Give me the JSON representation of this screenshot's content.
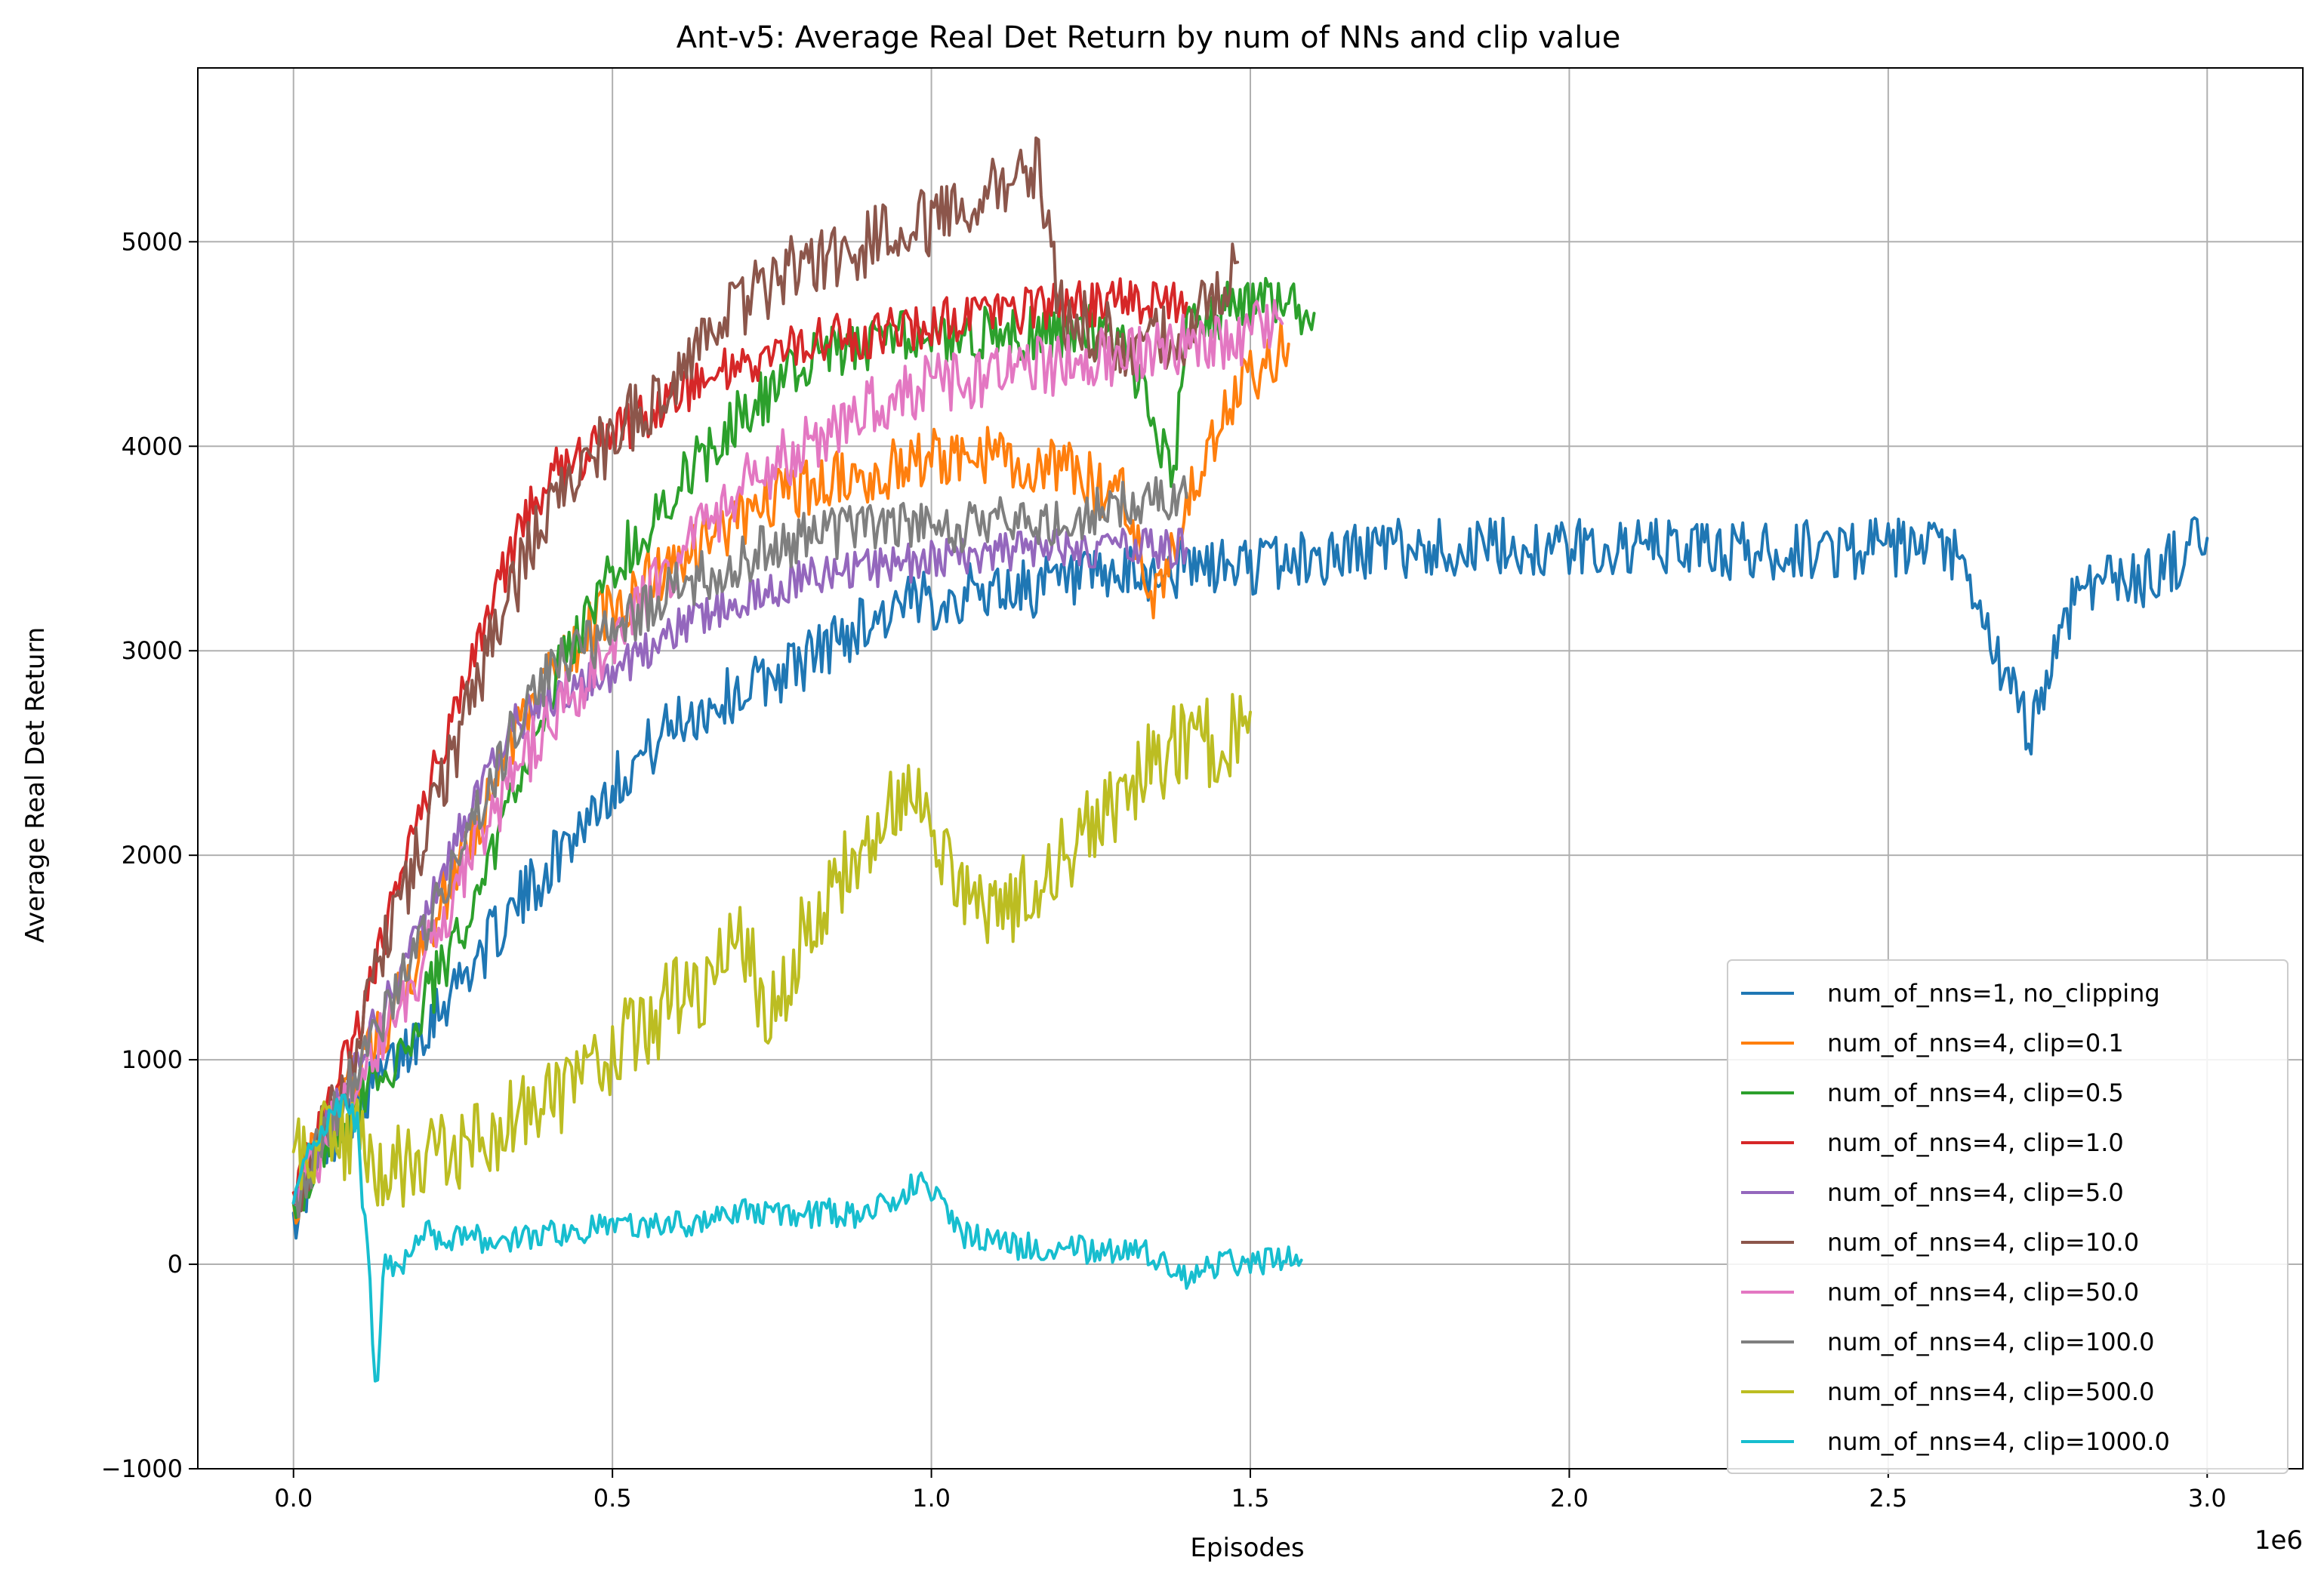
{
  "chart_data": {
    "type": "line",
    "title": "Ant-v5: Average Real Det Return by num of NNs and clip value",
    "xlabel": "Episodes",
    "ylabel": "Average Real Det Return",
    "x_offset_label": "1e6",
    "xlim": [
      -0.15,
      3.15
    ],
    "ylim": [
      -1000,
      5850
    ],
    "xticks": [
      0.0,
      0.5,
      1.0,
      1.5,
      2.0,
      2.5,
      3.0
    ],
    "xtick_labels": [
      "0.0",
      "0.5",
      "1.0",
      "1.5",
      "2.0",
      "2.5",
      "3.0"
    ],
    "yticks": [
      -1000,
      0,
      1000,
      2000,
      3000,
      4000,
      5000
    ],
    "ytick_labels": [
      "−1000",
      "0",
      "1000",
      "2000",
      "3000",
      "4000",
      "5000"
    ],
    "grid": true,
    "legend_position": "lower-right",
    "series": [
      {
        "name": "num_of_nns=1, no_clipping",
        "color": "#1f77b4",
        "points": [
          [
            0,
            250
          ],
          [
            0.05,
            600
          ],
          [
            0.1,
            800
          ],
          [
            0.15,
            950
          ],
          [
            0.2,
            1150
          ],
          [
            0.25,
            1350
          ],
          [
            0.3,
            1550
          ],
          [
            0.35,
            1750
          ],
          [
            0.4,
            1950
          ],
          [
            0.45,
            2150
          ],
          [
            0.5,
            2350
          ],
          [
            0.55,
            2500
          ],
          [
            0.6,
            2650
          ],
          [
            0.7,
            2800
          ],
          [
            0.8,
            2950
          ],
          [
            0.9,
            3150
          ],
          [
            1.0,
            3250
          ],
          [
            1.1,
            3300
          ],
          [
            1.2,
            3320
          ],
          [
            1.3,
            3350
          ],
          [
            1.4,
            3400
          ],
          [
            1.5,
            3420
          ],
          [
            1.6,
            3450
          ],
          [
            1.7,
            3500
          ],
          [
            1.8,
            3500
          ],
          [
            1.9,
            3500
          ],
          [
            2.0,
            3500
          ],
          [
            2.1,
            3500
          ],
          [
            2.2,
            3500
          ],
          [
            2.3,
            3480
          ],
          [
            2.4,
            3500
          ],
          [
            2.5,
            3500
          ],
          [
            2.6,
            3480
          ],
          [
            2.72,
            2600
          ],
          [
            2.8,
            3350
          ],
          [
            2.9,
            3350
          ],
          [
            3.0,
            3550
          ]
        ],
        "noise": 150
      },
      {
        "name": "num_of_nns=4, clip=0.1",
        "color": "#ff7f0e",
        "points": [
          [
            0,
            300
          ],
          [
            0.05,
            650
          ],
          [
            0.1,
            950
          ],
          [
            0.15,
            1200
          ],
          [
            0.2,
            1550
          ],
          [
            0.25,
            1900
          ],
          [
            0.3,
            2250
          ],
          [
            0.35,
            2600
          ],
          [
            0.4,
            2900
          ],
          [
            0.5,
            3200
          ],
          [
            0.6,
            3450
          ],
          [
            0.7,
            3650
          ],
          [
            0.8,
            3800
          ],
          [
            0.9,
            3850
          ],
          [
            1.0,
            3950
          ],
          [
            1.1,
            3950
          ],
          [
            1.2,
            3900
          ],
          [
            1.3,
            3750
          ],
          [
            1.35,
            3250
          ],
          [
            1.4,
            3700
          ],
          [
            1.45,
            4100
          ],
          [
            1.5,
            4350
          ],
          [
            1.56,
            4500
          ]
        ],
        "noise": 150
      },
      {
        "name": "num_of_nns=4, clip=0.5",
        "color": "#2ca02c",
        "points": [
          [
            0,
            300
          ],
          [
            0.05,
            600
          ],
          [
            0.1,
            800
          ],
          [
            0.15,
            950
          ],
          [
            0.2,
            1250
          ],
          [
            0.25,
            1550
          ],
          [
            0.3,
            1900
          ],
          [
            0.35,
            2350
          ],
          [
            0.4,
            2800
          ],
          [
            0.5,
            3400
          ],
          [
            0.6,
            3800
          ],
          [
            0.7,
            4150
          ],
          [
            0.8,
            4400
          ],
          [
            0.9,
            4500
          ],
          [
            1.0,
            4550
          ],
          [
            1.1,
            4550
          ],
          [
            1.2,
            4550
          ],
          [
            1.3,
            4550
          ],
          [
            1.38,
            3850
          ],
          [
            1.4,
            4600
          ],
          [
            1.5,
            4700
          ],
          [
            1.6,
            4650
          ]
        ],
        "noise": 140
      },
      {
        "name": "num_of_nns=4, clip=1.0",
        "color": "#d62728",
        "points": [
          [
            0,
            350
          ],
          [
            0.05,
            700
          ],
          [
            0.1,
            1150
          ],
          [
            0.15,
            1700
          ],
          [
            0.2,
            2200
          ],
          [
            0.25,
            2700
          ],
          [
            0.3,
            3150
          ],
          [
            0.35,
            3550
          ],
          [
            0.4,
            3850
          ],
          [
            0.5,
            4050
          ],
          [
            0.6,
            4250
          ],
          [
            0.7,
            4400
          ],
          [
            0.8,
            4500
          ],
          [
            0.9,
            4550
          ],
          [
            1.0,
            4600
          ],
          [
            1.1,
            4650
          ],
          [
            1.2,
            4700
          ],
          [
            1.3,
            4700
          ],
          [
            1.4,
            4700
          ]
        ],
        "noise": 120
      },
      {
        "name": "num_of_nns=4, clip=5.0",
        "color": "#9467bd",
        "points": [
          [
            0,
            300
          ],
          [
            0.05,
            650
          ],
          [
            0.1,
            1000
          ],
          [
            0.15,
            1300
          ],
          [
            0.2,
            1650
          ],
          [
            0.25,
            2050
          ],
          [
            0.3,
            2400
          ],
          [
            0.35,
            2650
          ],
          [
            0.4,
            2750
          ],
          [
            0.5,
            2900
          ],
          [
            0.6,
            3100
          ],
          [
            0.7,
            3250
          ],
          [
            0.8,
            3350
          ],
          [
            0.9,
            3400
          ],
          [
            1.0,
            3450
          ],
          [
            1.1,
            3480
          ],
          [
            1.2,
            3500
          ],
          [
            1.3,
            3500
          ],
          [
            1.4,
            3500
          ]
        ],
        "noise": 100
      },
      {
        "name": "num_of_nns=4, clip=10.0",
        "color": "#8c564b",
        "points": [
          [
            0,
            300
          ],
          [
            0.05,
            700
          ],
          [
            0.1,
            1100
          ],
          [
            0.15,
            1600
          ],
          [
            0.2,
            2050
          ],
          [
            0.25,
            2500
          ],
          [
            0.3,
            2950
          ],
          [
            0.35,
            3350
          ],
          [
            0.4,
            3700
          ],
          [
            0.5,
            4050
          ],
          [
            0.6,
            4350
          ],
          [
            0.7,
            4700
          ],
          [
            0.8,
            4900
          ],
          [
            0.9,
            5000
          ],
          [
            1.0,
            5100
          ],
          [
            1.1,
            5250
          ],
          [
            1.17,
            5350
          ],
          [
            1.2,
            4650
          ],
          [
            1.3,
            4500
          ],
          [
            1.4,
            4550
          ],
          [
            1.48,
            4900
          ]
        ],
        "noise": 170
      },
      {
        "name": "num_of_nns=4, clip=50.0",
        "color": "#e377c2",
        "points": [
          [
            0,
            300
          ],
          [
            0.05,
            600
          ],
          [
            0.1,
            900
          ],
          [
            0.15,
            1150
          ],
          [
            0.2,
            1450
          ],
          [
            0.25,
            1800
          ],
          [
            0.3,
            2150
          ],
          [
            0.35,
            2400
          ],
          [
            0.4,
            2650
          ],
          [
            0.5,
            3000
          ],
          [
            0.6,
            3450
          ],
          [
            0.7,
            3800
          ],
          [
            0.8,
            4000
          ],
          [
            0.9,
            4200
          ],
          [
            1.0,
            4300
          ],
          [
            1.1,
            4350
          ],
          [
            1.2,
            4400
          ],
          [
            1.3,
            4450
          ],
          [
            1.4,
            4500
          ],
          [
            1.5,
            4550
          ],
          [
            1.55,
            4600
          ]
        ],
        "noise": 150
      },
      {
        "name": "num_of_nns=4, clip=100.0",
        "color": "#7f7f7f",
        "points": [
          [
            0,
            300
          ],
          [
            0.05,
            650
          ],
          [
            0.1,
            950
          ],
          [
            0.15,
            1250
          ],
          [
            0.2,
            1600
          ],
          [
            0.25,
            1950
          ],
          [
            0.3,
            2300
          ],
          [
            0.35,
            2650
          ],
          [
            0.4,
            2900
          ],
          [
            0.5,
            3100
          ],
          [
            0.6,
            3300
          ],
          [
            0.7,
            3450
          ],
          [
            0.8,
            3550
          ],
          [
            0.9,
            3600
          ],
          [
            1.0,
            3600
          ],
          [
            1.1,
            3620
          ],
          [
            1.2,
            3650
          ],
          [
            1.3,
            3700
          ],
          [
            1.4,
            3750
          ]
        ],
        "noise": 130
      },
      {
        "name": "num_of_nns=4, clip=500.0",
        "color": "#bcbd22",
        "points": [
          [
            0,
            550
          ],
          [
            0.05,
            600
          ],
          [
            0.1,
            600
          ],
          [
            0.15,
            450
          ],
          [
            0.2,
            550
          ],
          [
            0.3,
            600
          ],
          [
            0.35,
            700
          ],
          [
            0.4,
            800
          ],
          [
            0.45,
            950
          ],
          [
            0.5,
            1050
          ],
          [
            0.55,
            1150
          ],
          [
            0.6,
            1300
          ],
          [
            0.65,
            1400
          ],
          [
            0.7,
            1550
          ],
          [
            0.75,
            1250
          ],
          [
            0.8,
            1600
          ],
          [
            0.85,
            1850
          ],
          [
            0.9,
            2050
          ],
          [
            0.95,
            2300
          ],
          [
            1.0,
            2150
          ],
          [
            1.05,
            1850
          ],
          [
            1.1,
            1750
          ],
          [
            1.15,
            1800
          ],
          [
            1.2,
            2000
          ],
          [
            1.25,
            2150
          ],
          [
            1.3,
            2300
          ],
          [
            1.35,
            2450
          ],
          [
            1.4,
            2550
          ],
          [
            1.45,
            2550
          ],
          [
            1.5,
            2700
          ]
        ],
        "noise": 220
      },
      {
        "name": "num_of_nns=4, clip=1000.0",
        "color": "#17becf",
        "points": [
          [
            0,
            300
          ],
          [
            0.03,
            600
          ],
          [
            0.06,
            750
          ],
          [
            0.08,
            800
          ],
          [
            0.1,
            700
          ],
          [
            0.11,
            250
          ],
          [
            0.12,
            -100
          ],
          [
            0.13,
            -700
          ],
          [
            0.14,
            0
          ],
          [
            0.16,
            -50
          ],
          [
            0.2,
            150
          ],
          [
            0.3,
            120
          ],
          [
            0.4,
            150
          ],
          [
            0.5,
            180
          ],
          [
            0.6,
            200
          ],
          [
            0.7,
            250
          ],
          [
            0.8,
            250
          ],
          [
            0.9,
            250
          ],
          [
            0.98,
            400
          ],
          [
            1.0,
            350
          ],
          [
            1.05,
            150
          ],
          [
            1.1,
            100
          ],
          [
            1.2,
            80
          ],
          [
            1.3,
            60
          ],
          [
            1.35,
            50
          ],
          [
            1.4,
            -50
          ],
          [
            1.45,
            0
          ],
          [
            1.5,
            20
          ],
          [
            1.58,
            20
          ]
        ],
        "noise": 70
      }
    ]
  }
}
